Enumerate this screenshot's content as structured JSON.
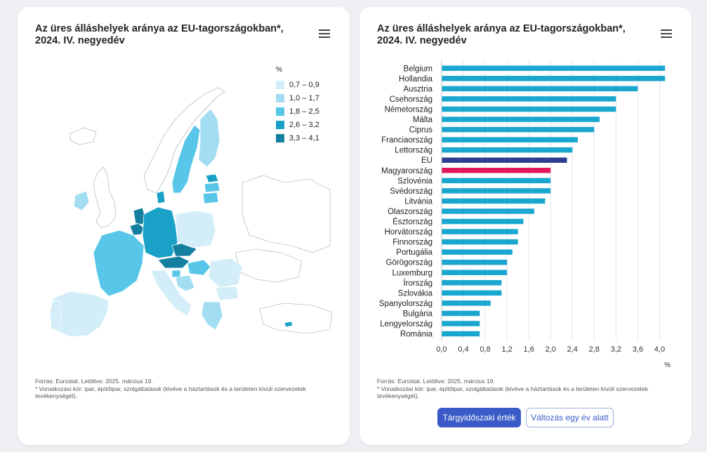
{
  "left": {
    "title": "Az üres álláshelyek aránya az EU-tagországokban*, 2024. IV. negyedév",
    "legend": {
      "title": "%",
      "items": [
        {
          "label": "0,7 – 0,9",
          "color": "#d3eef8"
        },
        {
          "label": "1,0 – 1,7",
          "color": "#a3ddf1"
        },
        {
          "label": "1,8 – 2,5",
          "color": "#58c6e8"
        },
        {
          "label": "2,6 – 3,2",
          "color": "#1aa1c8"
        },
        {
          "label": "3,3 – 4,1",
          "color": "#157f9f"
        }
      ]
    },
    "source": "Forrás: Eurostat. Letöltve: 2025. március 19.",
    "note": "* Vonatkozási kör: ipar, építőipar, szolgáltatások (kivéve a háztartások és a területen kívüli szervezetek tevékenységét)."
  },
  "right": {
    "title": "Az üres álláshelyek aránya az EU-tagországokban*, 2024. IV. negyedév",
    "source": "Forrás: Eurostat. Letöltve: 2025. március 19.",
    "note": "* Vonatkozási kör: ipar, építőipar, szolgáltatások (kivéve a háztartások és a területen kívüli szervezetek tevékenységét).",
    "buttons": {
      "period": "Tárgyidőszaki érték",
      "change": "Változás egy év alatt"
    }
  },
  "colors": {
    "bar": "#1aa7cf",
    "eu": "#2c3e8f",
    "hungary": "#e0175c",
    "accent": "#3a5bc7"
  },
  "chart_data": {
    "type": "bar",
    "orientation": "horizontal",
    "title": "Az üres álláshelyek aránya az EU-tagországokban*, 2024. IV. negyedév",
    "xlabel": "%",
    "xlim": [
      0,
      4.2
    ],
    "xticks": [
      "0,0",
      "0,4",
      "0,8",
      "1,2",
      "1,6",
      "2,0",
      "2,4",
      "2,8",
      "3,2",
      "3,6",
      "4,0"
    ],
    "categories": [
      "Belgium",
      "Hollandia",
      "Ausztria",
      "Csehország",
      "Németország",
      "Málta",
      "Ciprus",
      "Franciaország",
      "Lettország",
      "EU",
      "Magyarország",
      "Szlovénia",
      "Svédország",
      "Litvánia",
      "Olaszország",
      "Észtország",
      "Horvátország",
      "Finnország",
      "Portugália",
      "Görögország",
      "Luxemburg",
      "Írország",
      "Szlovákia",
      "Spanyolország",
      "Bulgária",
      "Lengyelország",
      "Románia"
    ],
    "values": [
      4.1,
      4.1,
      3.6,
      3.2,
      3.2,
      2.9,
      2.8,
      2.5,
      2.4,
      2.3,
      2.0,
      2.0,
      2.0,
      1.9,
      1.7,
      1.5,
      1.4,
      1.4,
      1.3,
      1.2,
      1.2,
      1.1,
      1.1,
      0.9,
      0.7,
      0.7,
      0.7
    ],
    "grid": "vertical"
  }
}
